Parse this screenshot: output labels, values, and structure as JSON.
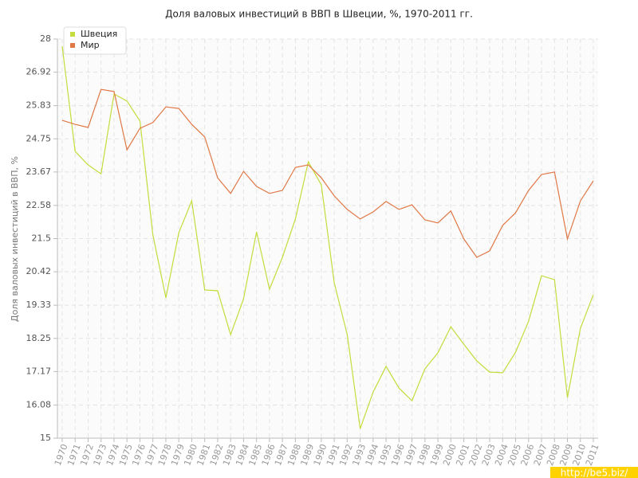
{
  "chart_data": {
    "type": "line",
    "title": "Доля валовых инвестиций в ВВП в Швеции, %, 1970-2011 гг.",
    "y_label": "Доля валовых инвестиций в ВВП, %",
    "categories": [
      "1970",
      "1971",
      "1972",
      "1973",
      "1974",
      "1975",
      "1976",
      "1977",
      "1978",
      "1979",
      "1980",
      "1981",
      "1982",
      "1983",
      "1984",
      "1985",
      "1986",
      "1987",
      "1988",
      "1989",
      "1990",
      "1991",
      "1992",
      "1993",
      "1994",
      "1995",
      "1996",
      "1997",
      "1998",
      "1999",
      "2000",
      "2001",
      "2002",
      "2003",
      "2004",
      "2005",
      "2006",
      "2007",
      "2008",
      "2009",
      "2010",
      "2011"
    ],
    "series": [
      {
        "name": "Швеция",
        "color": "#c5dc3c",
        "values": [
          27.77,
          24.34,
          23.9,
          23.61,
          26.21,
          25.98,
          25.33,
          21.62,
          19.57,
          21.69,
          22.73,
          19.83,
          19.8,
          18.37,
          19.54,
          21.72,
          19.85,
          20.89,
          22.14,
          24.0,
          23.25,
          20.06,
          18.37,
          15.31,
          16.5,
          17.34,
          16.63,
          16.22,
          17.26,
          17.78,
          18.63,
          18.06,
          17.52,
          17.15,
          17.13,
          17.8,
          18.81,
          20.29,
          20.16,
          16.32,
          18.58,
          19.67
        ]
      },
      {
        "name": "Мир",
        "color": "#e07846",
        "values": [
          25.35,
          25.22,
          25.12,
          26.36,
          26.29,
          24.39,
          25.09,
          25.28,
          25.79,
          25.74,
          25.22,
          24.81,
          23.48,
          22.97,
          23.69,
          23.2,
          22.97,
          23.07,
          23.82,
          23.9,
          23.48,
          22.89,
          22.45,
          22.14,
          22.37,
          22.71,
          22.45,
          22.6,
          22.11,
          22.01,
          22.4,
          21.49,
          20.89,
          21.1,
          21.93,
          22.34,
          23.07,
          23.59,
          23.67,
          21.49,
          22.73,
          23.38
        ]
      }
    ],
    "ylim": [
      15,
      28
    ],
    "yticks": [
      15,
      16.08,
      17.17,
      18.25,
      19.33,
      20.42,
      21.5,
      22.58,
      23.67,
      24.75,
      25.83,
      26.92,
      28
    ],
    "grid": true,
    "legend": "top-left"
  },
  "watermark": "http://be5.biz/"
}
